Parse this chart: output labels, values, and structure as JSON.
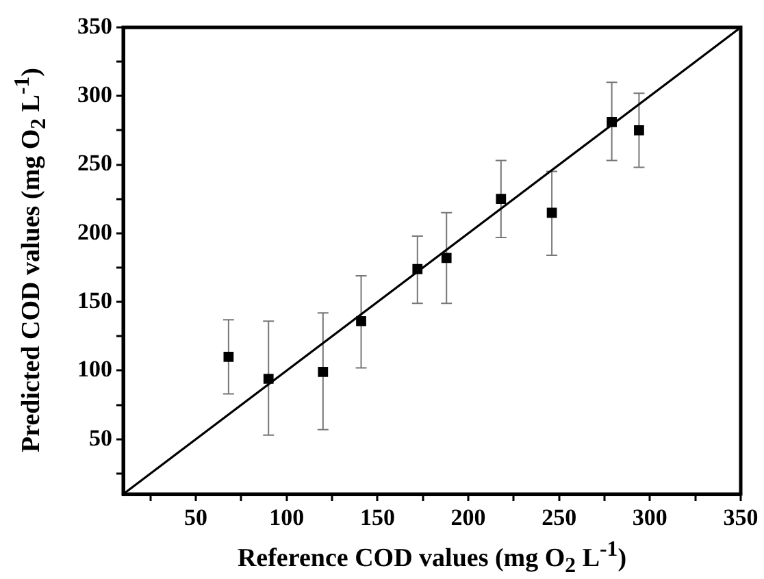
{
  "chart_data": {
    "type": "scatter",
    "xlabel": "Reference COD values (mg O$_{2}$ L$^{-1}$)",
    "ylabel": "Predicted COD values (mg O$_{2}$ L$^{-1}$)",
    "xlim": [
      10,
      350
    ],
    "ylim": [
      10,
      350
    ],
    "xticks": [
      {
        "value": 25,
        "label": null
      },
      50,
      {
        "value": 75,
        "label": null
      },
      100,
      {
        "value": 125,
        "label": null
      },
      150,
      {
        "value": 175,
        "label": null
      },
      200,
      {
        "value": 225,
        "label": null
      },
      250,
      {
        "value": 275,
        "label": null
      },
      300,
      {
        "value": 325,
        "label": null
      },
      350
    ],
    "yticks": [
      {
        "value": 25,
        "label": null
      },
      50,
      {
        "value": 75,
        "label": null
      },
      100,
      {
        "value": 125,
        "label": null
      },
      150,
      {
        "value": 175,
        "label": null
      },
      200,
      {
        "value": 225,
        "label": null
      },
      250,
      {
        "value": 275,
        "label": null
      },
      300,
      {
        "value": 325,
        "label": null
      },
      350
    ],
    "grid": false,
    "legend": false,
    "marker": "square",
    "series": [
      {
        "color": "#000000",
        "x": [
          68,
          90,
          120,
          141,
          172,
          188,
          218,
          246,
          279,
          294
        ],
        "values": [
          110,
          94,
          99,
          136,
          174,
          182,
          225,
          215,
          281,
          275
        ],
        "errors": [
          [
            83,
            137
          ],
          [
            53,
            136
          ],
          [
            57,
            142
          ],
          [
            102,
            169
          ],
          [
            149,
            198
          ],
          [
            149,
            215
          ],
          [
            197,
            253
          ],
          [
            184,
            245
          ],
          [
            253,
            310
          ],
          [
            248,
            302
          ]
        ]
      },
      {
        "type": "line",
        "color": "#000000",
        "x": [
          10,
          350
        ],
        "values": [
          10,
          350
        ],
        "marker": "none",
        "line_style": "solid"
      }
    ]
  }
}
